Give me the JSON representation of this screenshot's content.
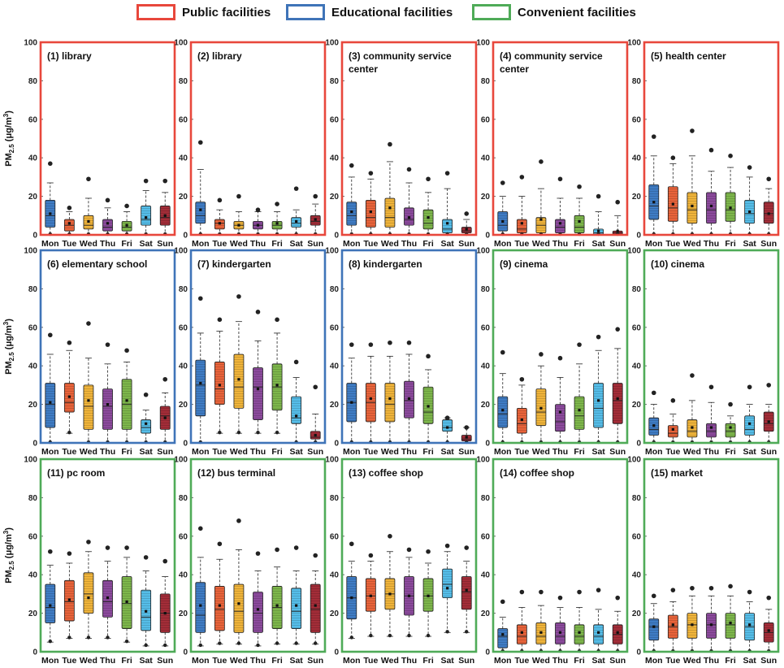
{
  "legend": [
    {
      "label": "Public facilities",
      "color": "#e8473c"
    },
    {
      "label": "Educational facilities",
      "color": "#3f74b8"
    },
    {
      "label": "Convenient facilities",
      "color": "#4fab58"
    }
  ],
  "ylabel": "PM",
  "ylabel_sub": "2.5",
  "ylabel_unit": "(μg/m",
  "ylabel_sup": "3",
  "ylabel_close": ")",
  "chart_data": {
    "type": "boxplot",
    "ylim": [
      0,
      100
    ],
    "yticks": [
      "0",
      "20",
      "40",
      "60",
      "80",
      "100"
    ],
    "categories": [
      "Mon",
      "Tue",
      "Wed",
      "Thu",
      "Fri",
      "Sat",
      "Sun"
    ],
    "box_colors": [
      "#3f7cc4",
      "#e8633a",
      "#f0b43a",
      "#8b4a9c",
      "#7db64b",
      "#55bde8",
      "#a32d38"
    ],
    "panels": [
      {
        "label": "(1) library",
        "category": "Public facilities",
        "border": "#e8473c",
        "boxes": [
          [
            0,
            4,
            10,
            18,
            27,
            37,
            11
          ],
          [
            0,
            2,
            5,
            8,
            12,
            14,
            6
          ],
          [
            0,
            3,
            5,
            10,
            19,
            29,
            7
          ],
          [
            0,
            2,
            4,
            8,
            14,
            18,
            6
          ],
          [
            0,
            2,
            4,
            7,
            12,
            15,
            5
          ],
          [
            0,
            5,
            8,
            15,
            23,
            28,
            9
          ],
          [
            0,
            5,
            9,
            15,
            22,
            28,
            10
          ]
        ]
      },
      {
        "label": "(2) library",
        "category": "Public facilities",
        "border": "#e8473c",
        "boxes": [
          [
            0,
            6,
            10,
            17,
            34,
            48,
            13
          ],
          [
            0,
            3,
            6,
            8,
            13,
            18,
            6
          ],
          [
            0,
            3,
            5,
            7,
            12,
            20,
            5
          ],
          [
            0,
            3,
            5,
            7,
            12,
            13,
            5
          ],
          [
            0,
            3,
            5,
            7,
            12,
            16,
            6
          ],
          [
            0,
            4,
            6,
            9,
            13,
            24,
            7
          ],
          [
            0,
            5,
            7,
            10,
            16,
            20,
            8
          ]
        ]
      },
      {
        "label": "(3) community service center",
        "category": "Public facilities",
        "border": "#e8473c",
        "boxes": [
          [
            0,
            5,
            10,
            17,
            30,
            36,
            12
          ],
          [
            0,
            4,
            9,
            18,
            29,
            32,
            12
          ],
          [
            0,
            4,
            9,
            19,
            38,
            47,
            14
          ],
          [
            0,
            5,
            8,
            14,
            27,
            34,
            9
          ],
          [
            0,
            3,
            6,
            13,
            22,
            29,
            9
          ],
          [
            0,
            1,
            3,
            8,
            24,
            32,
            6
          ],
          [
            0,
            1,
            2,
            4,
            8,
            11,
            3
          ]
        ]
      },
      {
        "label": "(4) community service center",
        "category": "Public facilities",
        "border": "#e8473c",
        "boxes": [
          [
            0,
            2,
            5,
            12,
            20,
            27,
            7
          ],
          [
            0,
            1,
            3,
            8,
            20,
            30,
            6
          ],
          [
            0,
            1,
            5,
            9,
            24,
            38,
            8
          ],
          [
            0,
            1,
            4,
            8,
            19,
            29,
            6
          ],
          [
            0,
            1,
            4,
            10,
            19,
            25,
            7
          ],
          [
            0,
            0,
            1,
            3,
            12,
            20,
            2
          ],
          [
            0,
            0,
            1,
            2,
            10,
            17,
            2
          ]
        ]
      },
      {
        "label": "(5) health center",
        "category": "Public facilities",
        "border": "#e8473c",
        "boxes": [
          [
            0,
            8,
            15,
            26,
            41,
            51,
            17
          ],
          [
            0,
            7,
            14,
            25,
            37,
            40,
            16
          ],
          [
            0,
            6,
            13,
            22,
            41,
            54,
            15
          ],
          [
            0,
            6,
            13,
            22,
            33,
            44,
            15
          ],
          [
            0,
            7,
            13,
            22,
            35,
            41,
            14
          ],
          [
            0,
            6,
            11,
            18,
            30,
            35,
            12
          ],
          [
            0,
            6,
            11,
            17,
            24,
            29,
            11
          ]
        ]
      },
      {
        "label": "(6) elementary school",
        "category": "Educational facilities",
        "border": "#3f74b8",
        "boxes": [
          [
            0,
            8,
            20,
            31,
            46,
            56,
            21
          ],
          [
            5,
            16,
            21,
            31,
            48,
            52,
            24
          ],
          [
            0,
            7,
            19,
            30,
            44,
            62,
            22
          ],
          [
            0,
            7,
            19,
            28,
            41,
            51,
            20
          ],
          [
            0,
            7,
            20,
            33,
            42,
            48,
            22
          ],
          [
            0,
            5,
            8,
            12,
            17,
            25,
            10
          ],
          [
            0,
            7,
            14,
            19,
            26,
            33,
            13
          ]
        ]
      },
      {
        "label": "(7) kindergarten",
        "category": "Educational facilities",
        "border": "#3f74b8",
        "boxes": [
          [
            0,
            14,
            30,
            43,
            57,
            75,
            31
          ],
          [
            5,
            20,
            28,
            42,
            58,
            64,
            30
          ],
          [
            5,
            18,
            29,
            46,
            63,
            76,
            33
          ],
          [
            5,
            12,
            29,
            39,
            53,
            68,
            28
          ],
          [
            5,
            17,
            29,
            41,
            57,
            64,
            30
          ],
          [
            0,
            10,
            13,
            24,
            34,
            42,
            14
          ],
          [
            0,
            2,
            3,
            6,
            15,
            29,
            4
          ]
        ]
      },
      {
        "label": "(8) kindergarten",
        "category": "Educational facilities",
        "border": "#3f74b8",
        "boxes": [
          [
            0,
            11,
            21,
            31,
            44,
            51,
            21
          ],
          [
            0,
            11,
            21,
            31,
            45,
            51,
            23
          ],
          [
            0,
            11,
            20,
            31,
            45,
            52,
            23
          ],
          [
            0,
            13,
            22,
            32,
            46,
            52,
            23
          ],
          [
            0,
            10,
            16,
            29,
            38,
            45,
            19
          ],
          [
            0,
            6,
            8,
            12,
            13,
            13,
            8
          ],
          [
            0,
            1,
            2,
            4,
            8,
            8,
            3
          ]
        ]
      },
      {
        "label": "(9) cinema",
        "category": "Convenient facilities",
        "border": "#4fab58",
        "boxes": [
          [
            0,
            8,
            15,
            24,
            36,
            47,
            17
          ],
          [
            0,
            5,
            10,
            18,
            30,
            33,
            12
          ],
          [
            0,
            9,
            16,
            28,
            40,
            46,
            18
          ],
          [
            0,
            6,
            11,
            20,
            34,
            44,
            16
          ],
          [
            0,
            7,
            14,
            24,
            41,
            51,
            17
          ],
          [
            0,
            8,
            18,
            31,
            48,
            55,
            22
          ],
          [
            0,
            10,
            22,
            31,
            49,
            59,
            23
          ]
        ]
      },
      {
        "label": "(10) cinema",
        "category": "Convenient facilities",
        "border": "#4fab58",
        "boxes": [
          [
            0,
            4,
            7,
            13,
            20,
            26,
            9
          ],
          [
            0,
            3,
            5,
            9,
            15,
            22,
            7
          ],
          [
            0,
            3,
            6,
            12,
            22,
            35,
            8
          ],
          [
            0,
            3,
            6,
            10,
            21,
            29,
            8
          ],
          [
            0,
            3,
            6,
            10,
            14,
            20,
            8
          ],
          [
            0,
            4,
            7,
            14,
            20,
            29,
            10
          ],
          [
            0,
            6,
            10,
            16,
            20,
            30,
            11
          ]
        ]
      },
      {
        "label": "(11) pc room",
        "category": "Convenient facilities",
        "border": "#4fab58",
        "boxes": [
          [
            5,
            15,
            23,
            35,
            45,
            52,
            24
          ],
          [
            7,
            16,
            26,
            37,
            46,
            51,
            27
          ],
          [
            7,
            20,
            30,
            41,
            52,
            57,
            28
          ],
          [
            7,
            18,
            26,
            37,
            47,
            54,
            28
          ],
          [
            5,
            12,
            25,
            39,
            49,
            54,
            26
          ],
          [
            3,
            11,
            18,
            32,
            42,
            49,
            21
          ],
          [
            3,
            10,
            20,
            30,
            39,
            47,
            20
          ]
        ]
      },
      {
        "label": "(12) bus terminal",
        "category": "Convenient facilities",
        "border": "#4fab58",
        "boxes": [
          [
            3,
            10,
            19,
            36,
            49,
            64,
            24
          ],
          [
            4,
            11,
            22,
            34,
            48,
            56,
            24
          ],
          [
            4,
            10,
            21,
            35,
            53,
            68,
            25
          ],
          [
            3,
            10,
            20,
            31,
            42,
            51,
            22
          ],
          [
            4,
            12,
            23,
            34,
            44,
            53,
            24
          ],
          [
            4,
            12,
            21,
            33,
            42,
            54,
            24
          ],
          [
            4,
            10,
            22,
            35,
            42,
            50,
            24
          ]
        ]
      },
      {
        "label": "(13) coffee shop",
        "category": "Convenient facilities",
        "border": "#4fab58",
        "boxes": [
          [
            7,
            17,
            28,
            39,
            47,
            56,
            28
          ],
          [
            8,
            21,
            29,
            38,
            47,
            50,
            29
          ],
          [
            8,
            22,
            30,
            38,
            52,
            60,
            30
          ],
          [
            8,
            19,
            29,
            39,
            49,
            53,
            29
          ],
          [
            8,
            21,
            29,
            38,
            46,
            52,
            29
          ],
          [
            10,
            28,
            35,
            43,
            52,
            55,
            33
          ],
          [
            10,
            22,
            31,
            39,
            47,
            54,
            32
          ]
        ]
      },
      {
        "label": "(14) coffee shop",
        "category": "Convenient facilities",
        "border": "#4fab58",
        "boxes": [
          [
            0,
            2,
            8,
            12,
            18,
            26,
            9
          ],
          [
            0,
            4,
            8,
            14,
            23,
            31,
            10
          ],
          [
            0,
            4,
            8,
            15,
            24,
            31,
            10
          ],
          [
            0,
            4,
            8,
            15,
            23,
            28,
            10
          ],
          [
            0,
            4,
            8,
            14,
            23,
            31,
            10
          ],
          [
            0,
            4,
            8,
            14,
            22,
            32,
            10
          ],
          [
            0,
            4,
            9,
            14,
            21,
            28,
            10
          ]
        ]
      },
      {
        "label": "(15) market",
        "category": "Convenient facilities",
        "border": "#4fab58",
        "boxes": [
          [
            0,
            6,
            13,
            17,
            25,
            29,
            13
          ],
          [
            0,
            7,
            13,
            19,
            26,
            32,
            14
          ],
          [
            0,
            7,
            14,
            20,
            29,
            33,
            14
          ],
          [
            0,
            7,
            14,
            20,
            29,
            33,
            14
          ],
          [
            0,
            7,
            14,
            20,
            29,
            34,
            15
          ],
          [
            0,
            6,
            13,
            20,
            26,
            31,
            14
          ],
          [
            0,
            5,
            10,
            15,
            22,
            28,
            11
          ]
        ]
      }
    ]
  }
}
